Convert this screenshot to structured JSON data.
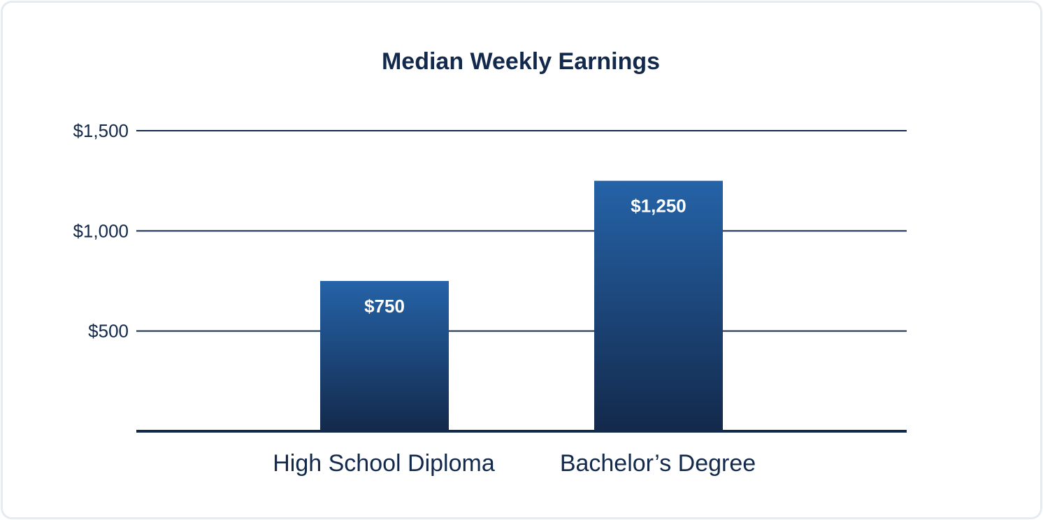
{
  "chart_data": {
    "type": "bar",
    "title": "Median Weekly Earnings",
    "categories": [
      "High School Diploma",
      "Bachelor’s Degree"
    ],
    "values": [
      750,
      1250
    ],
    "value_labels": [
      "$750",
      "$1,250"
    ],
    "yticks": [
      500,
      1000,
      1500
    ],
    "ytick_labels": [
      "$500",
      "$1,000",
      "$1,500"
    ],
    "ylim": [
      0,
      1500
    ],
    "xlabel": "",
    "ylabel": "",
    "grid": true,
    "legend": "none",
    "colors": {
      "bar_top": "#2563a8",
      "bar_bottom": "#13294b",
      "text": "#13294b",
      "grid": "#13294b",
      "border": "#e6ebf2"
    }
  }
}
